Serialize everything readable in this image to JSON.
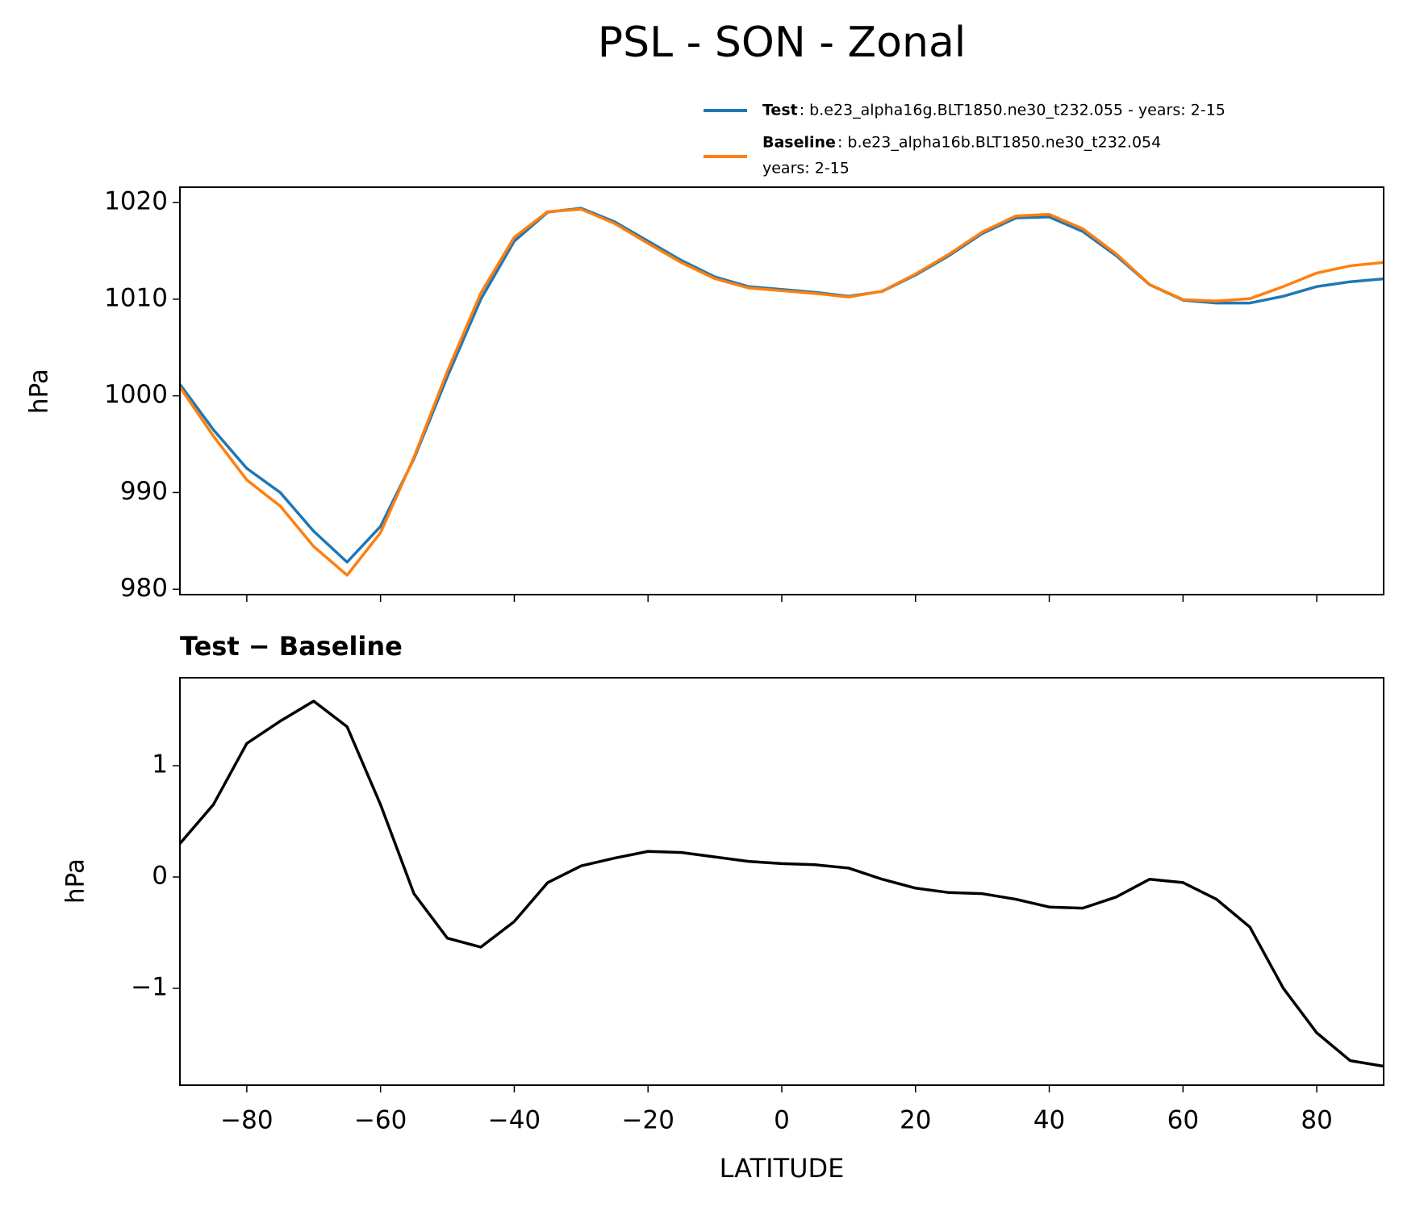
{
  "chart_data": [
    {
      "type": "line",
      "title": "PSL - SON - Zonal",
      "ylabel": "hPa",
      "x": [
        -90,
        -85,
        -80,
        -75,
        -70,
        -65,
        -60,
        -55,
        -50,
        -45,
        -40,
        -35,
        -30,
        -25,
        -20,
        -15,
        -10,
        -5,
        0,
        5,
        10,
        15,
        20,
        25,
        30,
        35,
        40,
        45,
        50,
        55,
        60,
        65,
        70,
        75,
        80,
        85,
        90
      ],
      "series": [
        {
          "name": "Test",
          "description": [
            ": b.e23_alpha16g.BLT1850.ne30_t232.055 - years: 2-15"
          ],
          "color": "#1f77b4",
          "values": [
            1001.2,
            996.5,
            992.5,
            990,
            986,
            982.8,
            986.5,
            993.5,
            1002,
            1010,
            1016,
            1019,
            1019.4,
            1018,
            1016,
            1014,
            1012.3,
            1011.3,
            1011,
            1010.7,
            1010.3,
            1010.8,
            1012.5,
            1014.5,
            1016.8,
            1018.4,
            1018.5,
            1017,
            1014.5,
            1011.5,
            1009.9,
            1009.6,
            1009.6,
            1010.3,
            1011.3,
            1011.8,
            1012.1
          ]
        },
        {
          "name": "Baseline",
          "description": [
            ": b.e23_alpha16b.BLT1850.ne30_t232.054",
            "years: 2-15"
          ],
          "color": "#ff7f0e",
          "values": [
            1000.9,
            995.85,
            991.3,
            988.6,
            984.42,
            981.45,
            985.85,
            993.65,
            1002.55,
            1010.63,
            1016.4,
            1019.05,
            1019.3,
            1017.83,
            1015.77,
            1013.78,
            1012.12,
            1011.16,
            1010.88,
            1010.59,
            1010.22,
            1010.82,
            1012.6,
            1014.64,
            1016.95,
            1018.6,
            1018.77,
            1017.28,
            1014.68,
            1011.52,
            1009.95,
            1009.8,
            1010.05,
            1011.3,
            1012.7,
            1013.45,
            1013.8
          ]
        }
      ],
      "xlim": [
        -90,
        90
      ],
      "ylim": [
        979.44,
        1021.58
      ],
      "yticks": [
        980,
        990,
        1000,
        1010,
        1020
      ]
    },
    {
      "type": "line",
      "title": "Test − Baseline",
      "xlabel": "LATITUDE",
      "ylabel": "hPa",
      "x": [
        -90,
        -85,
        -80,
        -75,
        -70,
        -65,
        -60,
        -55,
        -50,
        -45,
        -40,
        -35,
        -30,
        -25,
        -20,
        -15,
        -10,
        -5,
        0,
        5,
        10,
        15,
        20,
        25,
        30,
        35,
        40,
        45,
        50,
        55,
        60,
        65,
        70,
        75,
        80,
        85,
        90
      ],
      "series": [
        {
          "color": "#000000",
          "values": [
            0.3,
            0.65,
            1.2,
            1.4,
            1.58,
            1.35,
            0.65,
            -0.15,
            -0.55,
            -0.63,
            -0.4,
            -0.05,
            0.1,
            0.17,
            0.23,
            0.22,
            0.18,
            0.14,
            0.12,
            0.11,
            0.08,
            -0.02,
            -0.1,
            -0.14,
            -0.15,
            -0.2,
            -0.27,
            -0.28,
            -0.18,
            -0.02,
            -0.05,
            -0.2,
            -0.45,
            -1.0,
            -1.4,
            -1.65,
            -1.7
          ]
        }
      ],
      "xlim": [
        -90,
        90
      ],
      "ylim": [
        -1.87,
        1.79
      ],
      "xticks": [
        {
          "value": -80,
          "label": "−80"
        },
        {
          "value": -60,
          "label": "−60"
        },
        {
          "value": -40,
          "label": "−40"
        },
        {
          "value": -20,
          "label": "−20"
        },
        0,
        20,
        40,
        60,
        80
      ],
      "yticks": [
        {
          "value": -1,
          "label": "−1"
        },
        0,
        1
      ]
    }
  ]
}
